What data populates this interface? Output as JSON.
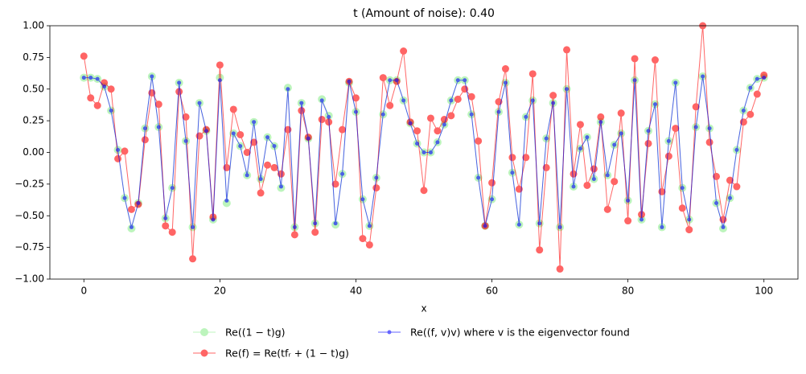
{
  "chart_data": {
    "type": "line",
    "title": "t (Amount of noise): 0.40",
    "x_label": "x",
    "x": [
      0,
      1,
      2,
      3,
      4,
      5,
      6,
      7,
      8,
      9,
      10,
      11,
      12,
      13,
      14,
      15,
      16,
      17,
      18,
      19,
      20,
      21,
      22,
      23,
      24,
      25,
      26,
      27,
      28,
      29,
      30,
      31,
      32,
      33,
      34,
      35,
      36,
      37,
      38,
      39,
      40,
      41,
      42,
      43,
      44,
      45,
      46,
      47,
      48,
      49,
      50,
      51,
      52,
      53,
      54,
      55,
      56,
      57,
      58,
      59,
      60,
      61,
      62,
      63,
      64,
      65,
      66,
      67,
      68,
      69,
      70,
      71,
      72,
      73,
      74,
      75,
      76,
      77,
      78,
      79,
      80,
      81,
      82,
      83,
      84,
      85,
      86,
      87,
      88,
      89,
      90,
      91,
      92,
      93,
      94,
      95,
      96,
      97,
      98,
      99,
      100
    ],
    "xlim": [
      -5,
      105
    ],
    "xticks": [
      0,
      20,
      40,
      60,
      80,
      100
    ],
    "ylim": [
      -1,
      1
    ],
    "yticks": [
      {
        "value": -1,
        "label": "−1.00"
      },
      {
        "value": -0.75,
        "label": "−0.75"
      },
      {
        "value": -0.5,
        "label": "−0.50"
      },
      {
        "value": -0.25,
        "label": "−0.25"
      },
      {
        "value": 0,
        "label": "0.00"
      },
      {
        "value": 0.25,
        "label": "0.25"
      },
      {
        "value": 0.5,
        "label": "0.50"
      },
      {
        "value": 0.75,
        "label": "0.75"
      },
      {
        "value": 1,
        "label": "1.00"
      }
    ],
    "legend": "lower center",
    "series": [
      {
        "name": "Re((1 − t)g)",
        "color": "#90ee90",
        "marker_size": 5,
        "values": [
          0.59,
          0.59,
          0.58,
          0.52,
          0.33,
          0.02,
          -0.36,
          -0.6,
          -0.4,
          0.19,
          0.6,
          0.2,
          -0.52,
          -0.28,
          0.55,
          0.09,
          -0.59,
          0.39,
          0.17,
          -0.53,
          0.59,
          -0.4,
          0.15,
          0.05,
          -0.18,
          0.24,
          -0.21,
          0.12,
          0.05,
          -0.28,
          0.51,
          -0.59,
          0.39,
          0.11,
          -0.56,
          0.42,
          0.29,
          -0.57,
          -0.17,
          0.55,
          0.32,
          -0.37,
          -0.58,
          -0.2,
          0.3,
          0.57,
          0.57,
          0.41,
          0.23,
          0.07,
          0.0,
          0.0,
          0.08,
          0.22,
          0.41,
          0.57,
          0.57,
          0.3,
          -0.2,
          -0.58,
          -0.37,
          0.32,
          0.55,
          -0.16,
          -0.57,
          0.28,
          0.41,
          -0.56,
          0.11,
          0.39,
          -0.59,
          0.5,
          -0.27,
          0.03,
          0.12,
          -0.21,
          0.24,
          -0.18,
          0.06,
          0.15,
          -0.38,
          0.57,
          -0.53,
          0.17,
          0.38,
          -0.59,
          0.09,
          0.55,
          -0.28,
          -0.53,
          0.2,
          0.6,
          0.19,
          -0.4,
          -0.6,
          -0.36,
          0.02,
          0.33,
          0.51,
          0.58,
          0.59
        ]
      },
      {
        "name": "Re(f) = Re(tfᵣ + (1 − t)g)",
        "color": "#ff0000",
        "marker_size": 4.5,
        "values": [
          0.76,
          0.43,
          0.37,
          0.55,
          0.5,
          -0.05,
          0.01,
          -0.45,
          -0.41,
          0.1,
          0.47,
          0.38,
          -0.58,
          -0.63,
          0.48,
          0.28,
          -0.84,
          0.13,
          0.18,
          -0.51,
          0.69,
          -0.12,
          0.34,
          0.14,
          0.0,
          0.08,
          -0.32,
          -0.1,
          -0.12,
          -0.17,
          0.18,
          -0.65,
          0.33,
          0.12,
          -0.63,
          0.26,
          0.24,
          -0.25,
          0.18,
          0.56,
          0.43,
          -0.68,
          -0.73,
          -0.28,
          0.59,
          0.37,
          0.56,
          0.8,
          0.24,
          0.17,
          -0.3,
          0.27,
          0.17,
          0.26,
          0.29,
          0.42,
          0.5,
          0.44,
          0.09,
          -0.58,
          -0.24,
          0.4,
          0.66,
          -0.04,
          -0.29,
          -0.04,
          0.62,
          -0.77,
          -0.12,
          0.45,
          -0.92,
          0.81,
          -0.17,
          0.22,
          -0.26,
          -0.13,
          0.28,
          -0.45,
          -0.23,
          0.31,
          -0.54,
          0.74,
          -0.49,
          0.07,
          0.73,
          -0.31,
          -0.03,
          0.19,
          -0.44,
          -0.61,
          0.36,
          1.0,
          0.08,
          -0.19,
          -0.53,
          -0.22,
          -0.27,
          0.24,
          0.3,
          0.46,
          0.61
        ]
      },
      {
        "name": "Re((f, v)v) where v is the eigenvector found",
        "color": "#0000ff",
        "marker_size": 2.5,
        "values": [
          0.59,
          0.59,
          0.58,
          0.52,
          0.33,
          0.02,
          -0.36,
          -0.59,
          -0.4,
          0.19,
          0.6,
          0.2,
          -0.52,
          -0.28,
          0.55,
          0.09,
          -0.59,
          0.39,
          0.17,
          -0.53,
          0.57,
          -0.38,
          0.15,
          0.05,
          -0.18,
          0.24,
          -0.21,
          0.12,
          0.05,
          -0.27,
          0.5,
          -0.59,
          0.39,
          0.11,
          -0.56,
          0.41,
          0.28,
          -0.56,
          -0.17,
          0.56,
          0.32,
          -0.37,
          -0.58,
          -0.2,
          0.3,
          0.57,
          0.57,
          0.41,
          0.23,
          0.07,
          0.0,
          0.0,
          0.08,
          0.22,
          0.41,
          0.57,
          0.57,
          0.3,
          -0.2,
          -0.58,
          -0.37,
          0.32,
          0.55,
          -0.16,
          -0.57,
          0.28,
          0.41,
          -0.56,
          0.11,
          0.39,
          -0.59,
          0.5,
          -0.27,
          0.03,
          0.12,
          -0.21,
          0.24,
          -0.18,
          0.06,
          0.15,
          -0.38,
          0.57,
          -0.53,
          0.17,
          0.38,
          -0.59,
          0.09,
          0.55,
          -0.28,
          -0.53,
          0.2,
          0.6,
          0.19,
          -0.4,
          -0.59,
          -0.36,
          0.02,
          0.33,
          0.51,
          0.58,
          0.59
        ]
      }
    ]
  }
}
